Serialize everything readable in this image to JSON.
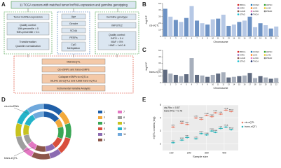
{
  "panel_labels": [
    "A",
    "B",
    "C",
    "D",
    "E"
  ],
  "flowchart": {
    "header": "11 TCGA cancers with matched tumor lncRNA expression and germline genotyping",
    "expression": {
      "title": "Tumor lncRNA expression",
      "qc": [
        "Quality control:",
        "10th-percentile > 0",
        "90th-percentile > 0.1"
      ],
      "transform": [
        "Transformation:",
        "Quantile normalization"
      ]
    },
    "covariates": [
      "Age",
      "Gender",
      "SCNA",
      "PEERs",
      "CpG",
      "Methylation"
    ],
    "genotype": {
      "title": "Germline genotype",
      "impute": "IMPUTE2",
      "qc": [
        "Quality control:",
        "INFO > 0.4",
        "MAF > 5%",
        "HWE > 1x10-6"
      ]
    },
    "analysis": [
      "MatrixEQTL",
      "cis-eSNPs and trans-eSNPs",
      "Collapse eSNPs to eQTLs:",
      "56,542 cis-eQTLs and 9,868 trans-eQTLs",
      "Instrumental Variable Analysis"
    ]
  },
  "chart_data": [
    {
      "type": "manhattan",
      "label": "cis-eQTL",
      "ylabel": "-log10 P",
      "xlabel": "Chromosome",
      "categories": [
        "1",
        "2",
        "3",
        "4",
        "5",
        "6",
        "7",
        "8",
        "9",
        "10",
        "11",
        "12",
        "13",
        "14",
        "15",
        "16",
        "17",
        "18",
        "19",
        "20",
        "21",
        "22"
      ],
      "values": [
        42,
        30,
        25,
        22,
        28,
        46,
        24,
        20,
        18,
        26,
        27,
        33,
        16,
        18,
        22,
        24,
        30,
        14,
        20,
        17,
        12,
        15
      ],
      "colors": [
        "#3c6db0",
        "#9db6dc"
      ],
      "ylim": [
        0,
        50
      ],
      "yticks": [
        0,
        10,
        20,
        30,
        40,
        50
      ],
      "legend": [
        {
          "name": "BRCA",
          "color": "#d62728"
        },
        {
          "name": "COAD",
          "color": "#1f77b4"
        },
        {
          "name": "HNSC",
          "color": "#2ca02c"
        },
        {
          "name": "KIRC",
          "color": "#9467bd"
        },
        {
          "name": "LGG",
          "color": "#ff7f0e"
        },
        {
          "name": "LIHC",
          "color": "#e6c619"
        },
        {
          "name": "LUAD",
          "color": "#8c564b"
        },
        {
          "name": "LUSC",
          "color": "#e377c2"
        },
        {
          "name": "PRAD",
          "color": "#7f7f7f"
        },
        {
          "name": "STAD",
          "color": "#17becf"
        },
        {
          "name": "THCA",
          "color": "#1a2a6c"
        }
      ]
    },
    {
      "type": "manhattan",
      "label": "trans-eQTL",
      "ylabel": "-log10 P",
      "xlabel": "Chromosome",
      "categories": [
        "1",
        "2",
        "3",
        "4",
        "5",
        "6",
        "7",
        "8",
        "9",
        "10",
        "11",
        "12",
        "13",
        "14",
        "15",
        "16",
        "17",
        "18",
        "19",
        "20",
        "21",
        "22"
      ],
      "values": [
        20,
        14,
        12,
        10,
        13,
        38,
        12,
        11,
        9,
        12,
        14,
        16,
        8,
        9,
        10,
        11,
        15,
        7,
        10,
        8,
        6,
        7
      ],
      "colors": [
        "#2b3a55",
        "#8a94a6"
      ],
      "ylim": [
        0,
        50
      ],
      "yticks": [
        0,
        10,
        20,
        30,
        40,
        50
      ],
      "legend": [
        {
          "name": "BRCA",
          "color": "#d62728"
        },
        {
          "name": "COAD",
          "color": "#1f77b4"
        },
        {
          "name": "HNSC",
          "color": "#2ca02c"
        },
        {
          "name": "KIRC",
          "color": "#9467bd"
        },
        {
          "name": "LGG",
          "color": "#ff7f0e"
        },
        {
          "name": "LIHC",
          "color": "#e6c619"
        },
        {
          "name": "LUAD",
          "color": "#8c564b"
        },
        {
          "name": "LUSC",
          "color": "#e377c2"
        },
        {
          "name": "PRAD",
          "color": "#7f7f7f"
        },
        {
          "name": "STAD",
          "color": "#17becf"
        },
        {
          "name": "THCA",
          "color": "#1a2a6c"
        }
      ]
    },
    {
      "type": "donut",
      "categories": [
        "1",
        "2",
        "3",
        "4",
        "5",
        "6",
        "7",
        "8",
        "9",
        "10",
        "11"
      ],
      "colors": [
        "#1f5fa8",
        "#f2a93b",
        "#3aa655",
        "#d94f3d",
        "#8c6bb1",
        "#8c564b",
        "#e377c2",
        "#9e9e9e",
        "#c7c21f",
        "#24b3c9",
        "#6fa8dc"
      ],
      "rings": [
        {
          "name": "cis-elncRNA",
          "values": [
            12,
            8,
            9,
            10,
            7,
            11,
            6,
            9,
            8,
            10,
            10
          ]
        },
        {
          "name": "trans-eQTL",
          "values": [
            14,
            7,
            10,
            9,
            8,
            9,
            7,
            8,
            9,
            10,
            9
          ]
        }
      ]
    },
    {
      "type": "scatter",
      "xlabel": "Sample size",
      "ylabel": "eQTL counts (log)",
      "xlim": [
        50,
        480
      ],
      "xticks": [
        100,
        200,
        300,
        400
      ],
      "ylim": [
        1.5,
        5
      ],
      "yticks": [
        2,
        3,
        4,
        5
      ],
      "annotations": [
        "cis-Rho = 0.87",
        "trans-Rho = 0.76"
      ],
      "series": [
        {
          "name": "cis-eQTL",
          "color": "#e8826f",
          "x": [
            110,
            160,
            190,
            240,
            270,
            300,
            330,
            350,
            380,
            410,
            440
          ],
          "values": [
            3.3,
            3.6,
            3.5,
            4.0,
            3.9,
            4.2,
            4.1,
            4.4,
            4.3,
            4.6,
            4.5
          ],
          "labels": [
            "LIHC",
            "STAD",
            "KIRC",
            "LUSC",
            "HNSC",
            "COAD",
            "PRAD",
            "LUAD",
            "LGG",
            "THCA",
            "BRCA"
          ]
        },
        {
          "name": "trans-eQTL",
          "color": "#2ab3b8",
          "x": [
            110,
            160,
            190,
            240,
            270,
            300,
            330,
            350,
            380,
            410,
            440
          ],
          "values": [
            2.1,
            2.3,
            2.5,
            2.4,
            2.8,
            2.7,
            3.0,
            2.9,
            3.2,
            3.3,
            3.1
          ],
          "labels": [
            "LIHC",
            "STAD",
            "KIRC",
            "LUSC",
            "HNSC",
            "COAD",
            "PRAD",
            "LUAD",
            "LGG",
            "THCA",
            "BRCA"
          ]
        }
      ]
    }
  ]
}
